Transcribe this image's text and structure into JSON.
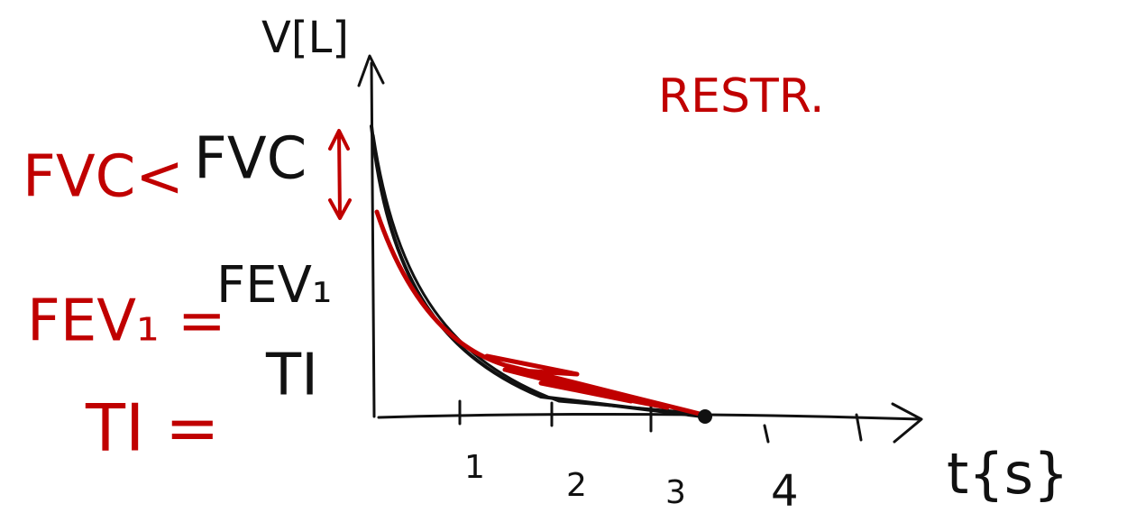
{
  "diagram": {
    "y_axis_label": "V[L]",
    "x_axis_label": "t{s}",
    "x_tick_labels": [
      "1",
      "2",
      "3",
      "4"
    ],
    "annotation": "RESTR.",
    "comparisons": [
      {
        "red": "FVC<",
        "black": "FVC"
      },
      {
        "red": "FEV₁ =",
        "black": "FEV₁"
      },
      {
        "red": "TI =",
        "black": "TI"
      }
    ]
  }
}
